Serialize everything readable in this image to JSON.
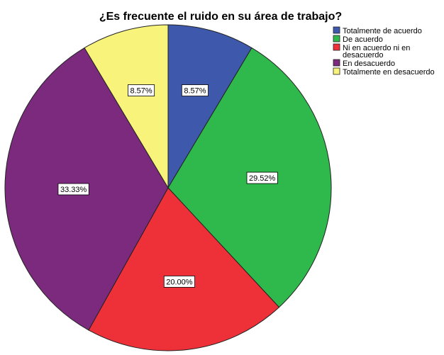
{
  "chart_data": {
    "type": "pie",
    "title": "¿Es frecuente el ruido en su área de trabajo?",
    "legend_position": "top-right",
    "slices": [
      {
        "label": "Totalmente de acuerdo",
        "legend_lines": [
          "Totalmente de acuerdo"
        ],
        "value": 8.57,
        "value_label": "8.57%",
        "color": "#3e58ac"
      },
      {
        "label": "De acuerdo",
        "legend_lines": [
          "De acuerdo"
        ],
        "value": 29.52,
        "value_label": "29.52%",
        "color": "#2fb84c"
      },
      {
        "label": "Ni en acuerdo ni en desacuerdo",
        "legend_lines": [
          "Ni en acuerdo ni en",
          "desacuerdo"
        ],
        "value": 20.0,
        "value_label": "20.00%",
        "color": "#ee3039"
      },
      {
        "label": "En desacuerdo",
        "legend_lines": [
          "En desacuerdo"
        ],
        "value": 33.33,
        "value_label": "33.33%",
        "color": "#7b2a7d"
      },
      {
        "label": "Totalmente en desacuerdo",
        "legend_lines": [
          "Totalmente en desacuerdo"
        ],
        "value": 8.57,
        "value_label": "8.57%",
        "color": "#f8f37a"
      }
    ]
  }
}
